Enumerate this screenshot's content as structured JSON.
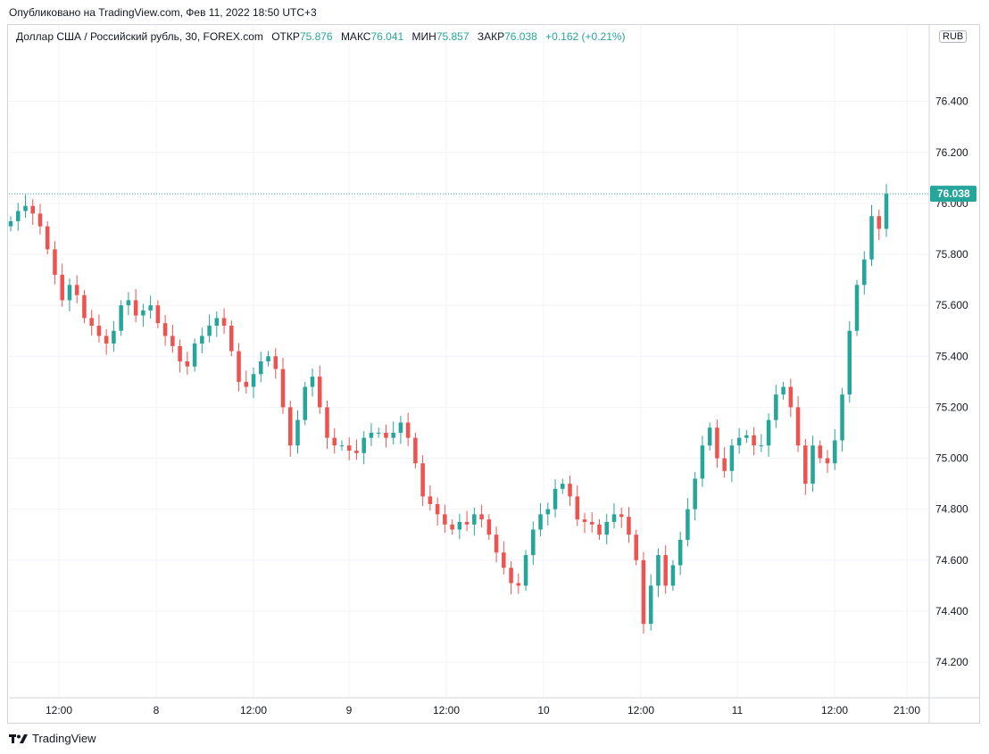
{
  "header": {
    "published": "Опубликовано на TradingView.com, Фев 11, 2022 18:50 UTC+3"
  },
  "legend": {
    "symbol": "Доллар США / Российский рубль, 30, FOREX.com",
    "open_label": "ОТКР",
    "open": "75.876",
    "high_label": "МАКС",
    "high": "76.041",
    "low_label": "МИН",
    "low": "75.857",
    "close_label": "ЗАКР",
    "close": "76.038",
    "change": "+0.162 (+0.21%)"
  },
  "currency_badge": "RUB",
  "footer": {
    "brand": "TradingView"
  },
  "colors": {
    "up": "#26a69a",
    "down": "#ef5350",
    "grid": "#f0f3fa",
    "text": "#131722"
  },
  "chart_data": {
    "type": "candlestick",
    "title": "",
    "y_axis": {
      "ticks": [
        74.2,
        74.4,
        74.6,
        74.8,
        75.0,
        75.2,
        75.4,
        75.6,
        75.8,
        76.0,
        76.2,
        76.4
      ],
      "tick_labels": [
        "74.200",
        "74.400",
        "74.600",
        "74.800",
        "75.000",
        "75.200",
        "75.400",
        "75.600",
        "75.800",
        "76.000",
        "76.200",
        "76.400"
      ],
      "range": [
        74.06,
        76.7
      ]
    },
    "x_axis": {
      "tick_labels": [
        "12:00",
        "8",
        "12:00",
        "9",
        "12:00",
        "10",
        "12:00",
        "11",
        "12:00",
        "21:00"
      ]
    },
    "last_price": {
      "value": 76.038,
      "label": "76.038"
    },
    "close_series": [
      75.93,
      75.97,
      75.99,
      75.96,
      75.91,
      75.82,
      75.72,
      75.62,
      75.68,
      75.64,
      75.55,
      75.52,
      75.48,
      75.45,
      75.5,
      75.6,
      75.62,
      75.56,
      75.58,
      75.6,
      75.53,
      75.48,
      75.44,
      75.38,
      75.36,
      75.45,
      75.48,
      75.52,
      75.55,
      75.52,
      75.42,
      75.3,
      75.28,
      75.33,
      75.38,
      75.4,
      75.35,
      75.2,
      75.05,
      75.15,
      75.28,
      75.32,
      75.2,
      75.08,
      75.05,
      75.05,
      75.03,
      75.02,
      75.08,
      75.1,
      75.1,
      75.08,
      75.1,
      75.14,
      75.08,
      74.98,
      74.85,
      74.82,
      74.78,
      74.74,
      74.72,
      74.75,
      74.74,
      74.78,
      74.76,
      74.7,
      74.63,
      74.57,
      74.51,
      74.5,
      74.62,
      74.72,
      74.78,
      74.8,
      74.88,
      74.9,
      74.85,
      74.76,
      74.75,
      74.74,
      74.7,
      74.75,
      74.78,
      74.77,
      74.7,
      74.6,
      74.35,
      74.5,
      74.62,
      74.5,
      74.58,
      74.68,
      74.8,
      74.92,
      75.05,
      75.12,
      75.0,
      74.95,
      75.05,
      75.08,
      75.09,
      75.05,
      75.05,
      75.15,
      75.25,
      75.28,
      75.2,
      75.05,
      74.9,
      75.05,
      75.0,
      74.98,
      75.07,
      75.25,
      75.5,
      75.68,
      75.78,
      75.95,
      75.9,
      76.038
    ]
  }
}
